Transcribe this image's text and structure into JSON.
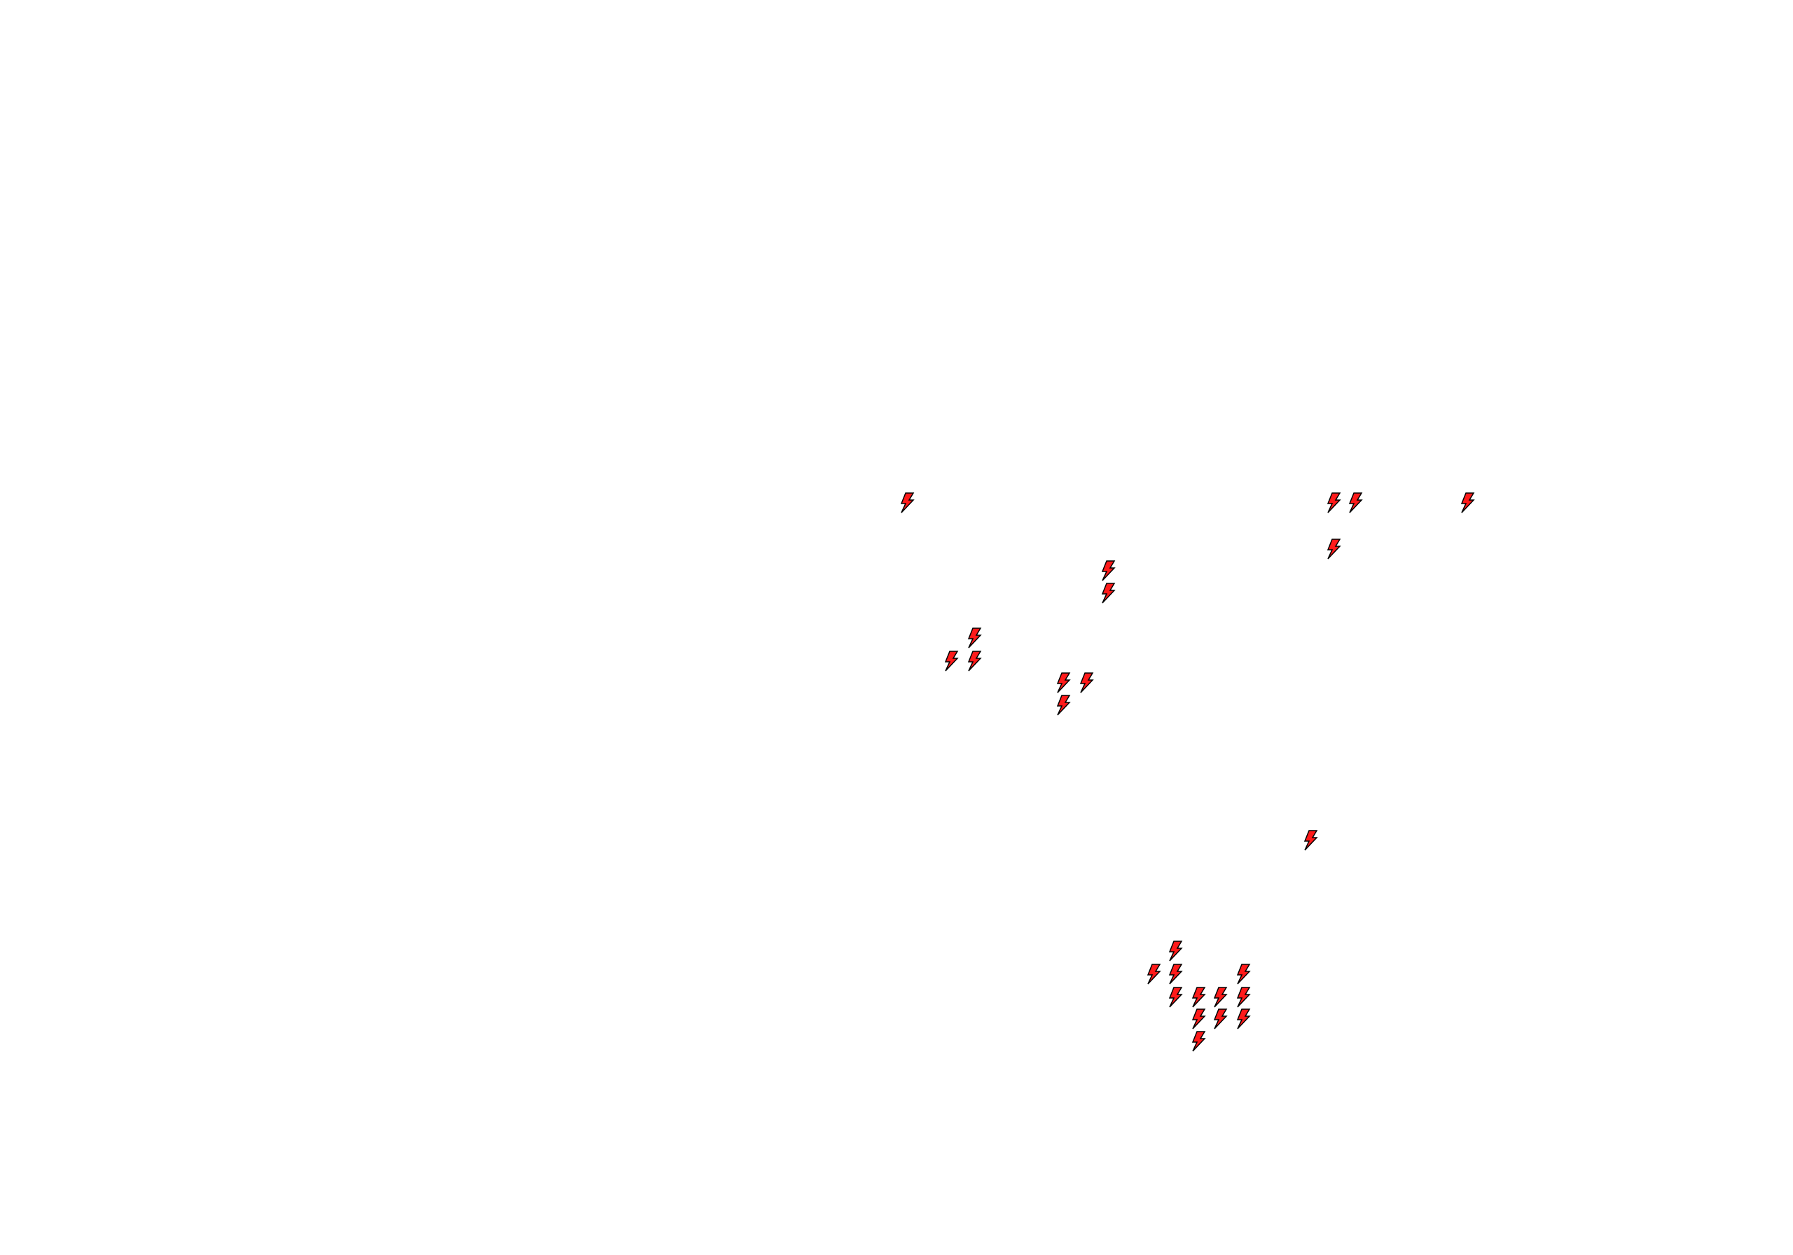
{
  "map": {
    "background": "#ffffff",
    "marker": {
      "icon": "lightning-bolt-icon",
      "fill": "#ff1a1a",
      "stroke": "#000000",
      "count": 26
    }
  }
}
